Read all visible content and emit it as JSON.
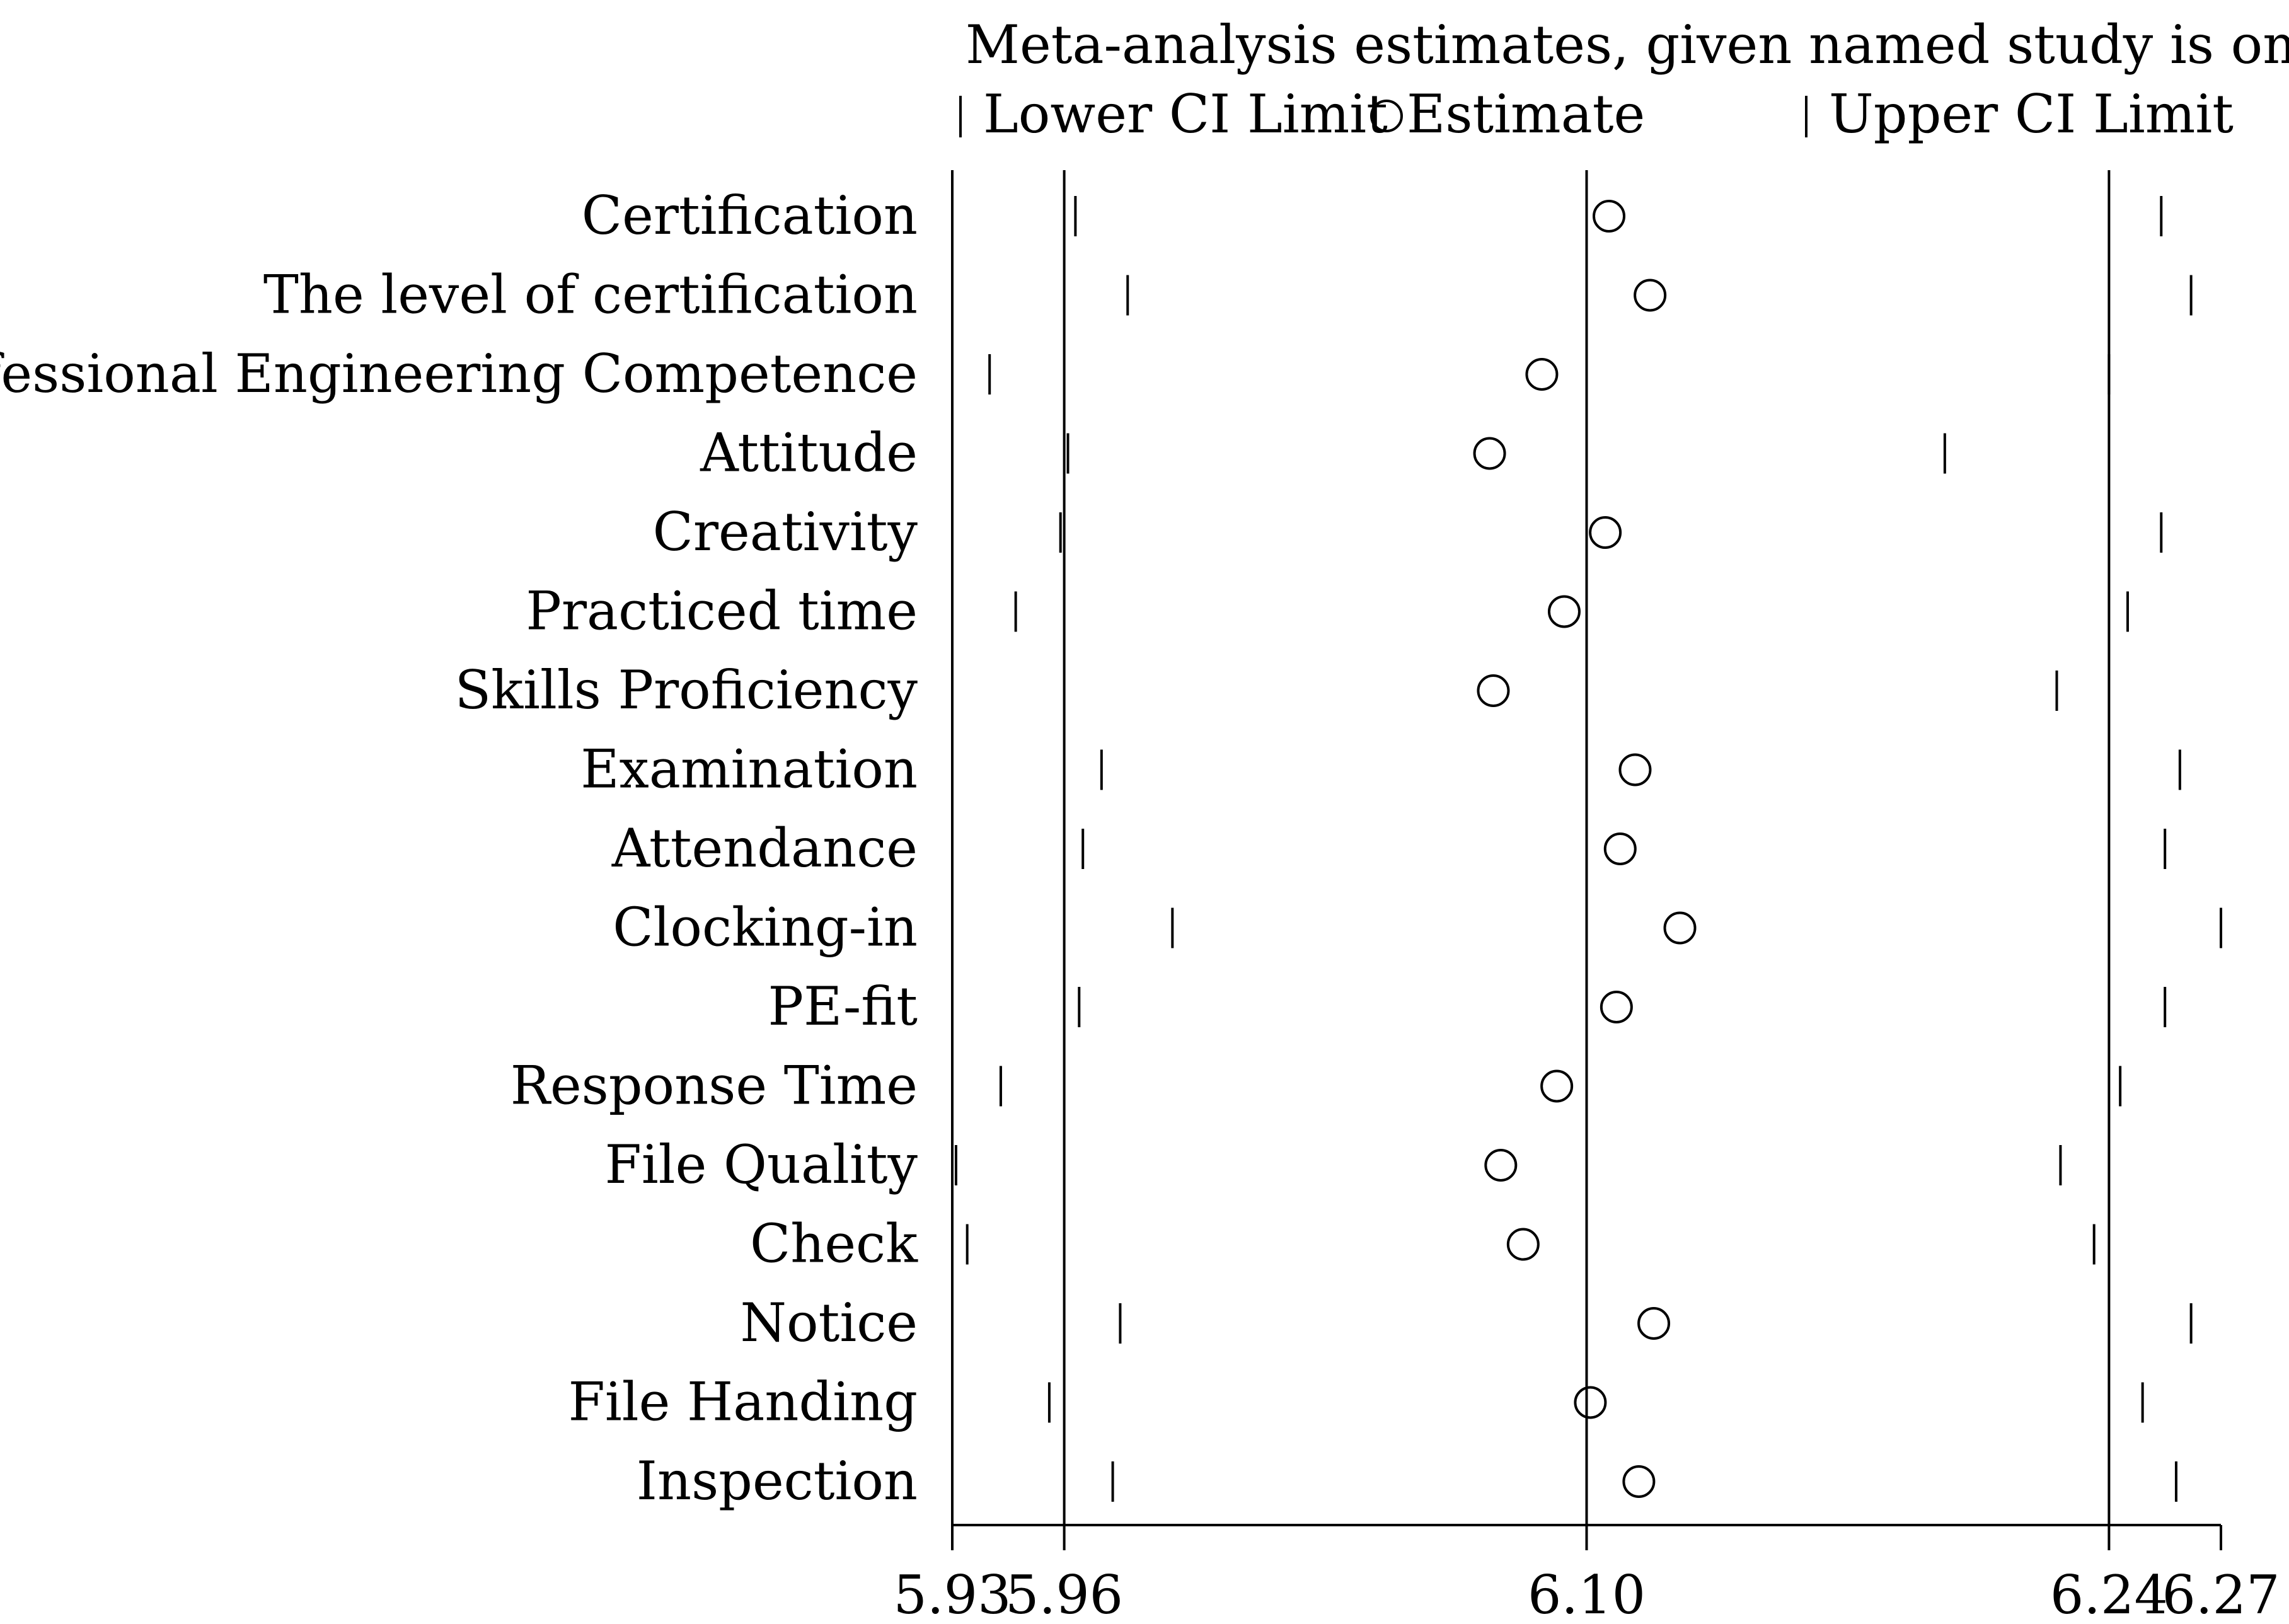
{
  "chart_data": {
    "type": "scatter",
    "title": "Meta-analysis estimates, given named study is omitted",
    "legend": {
      "lower": "Lower CI Limit",
      "estimate": "Estimate",
      "upper": "Upper CI Limit",
      "placement": "top"
    },
    "xlim": [
      5.93,
      6.27
    ],
    "x_ticks": [
      {
        "value": 5.93,
        "label": "5.93"
      },
      {
        "value": 5.96,
        "label": "5.96"
      },
      {
        "value": 6.1,
        "label": "6.10"
      },
      {
        "value": 6.24,
        "label": "6.24"
      },
      {
        "value": 6.27,
        "label": "6.27"
      }
    ],
    "reference_lines": [
      5.96,
      6.1,
      6.24
    ],
    "studies": [
      {
        "name": "Certification",
        "lower": 5.963,
        "estimate": 6.106,
        "upper": 6.254
      },
      {
        "name": "The level of certification",
        "lower": 5.977,
        "estimate": 6.117,
        "upper": 6.262
      },
      {
        "name": "Professional Engineering Competence",
        "lower": 5.94,
        "estimate": 6.088,
        "upper": 6.24
      },
      {
        "name": "Attitude",
        "lower": 5.961,
        "estimate": 6.074,
        "upper": 6.196
      },
      {
        "name": "Creativity",
        "lower": 5.959,
        "estimate": 6.105,
        "upper": 6.254
      },
      {
        "name": "Practiced time",
        "lower": 5.947,
        "estimate": 6.094,
        "upper": 6.245
      },
      {
        "name": "Skills Proficiency",
        "lower": 5.93,
        "estimate": 6.075,
        "upper": 6.226
      },
      {
        "name": "Examination",
        "lower": 5.97,
        "estimate": 6.113,
        "upper": 6.259
      },
      {
        "name": "Attendance",
        "lower": 5.965,
        "estimate": 6.109,
        "upper": 6.255
      },
      {
        "name": "Clocking-in",
        "lower": 5.989,
        "estimate": 6.125,
        "upper": 6.27
      },
      {
        "name": "PE-fit",
        "lower": 5.964,
        "estimate": 6.108,
        "upper": 6.255
      },
      {
        "name": "Response Time",
        "lower": 5.943,
        "estimate": 6.092,
        "upper": 6.243
      },
      {
        "name": "File Quality",
        "lower": 5.931,
        "estimate": 6.077,
        "upper": 6.227
      },
      {
        "name": "Check",
        "lower": 5.934,
        "estimate": 6.083,
        "upper": 6.236
      },
      {
        "name": "Notice",
        "lower": 5.975,
        "estimate": 6.118,
        "upper": 6.262
      },
      {
        "name": "File Handing",
        "lower": 5.956,
        "estimate": 6.101,
        "upper": 6.249
      },
      {
        "name": "Inspection",
        "lower": 5.973,
        "estimate": 6.114,
        "upper": 6.258
      }
    ]
  }
}
